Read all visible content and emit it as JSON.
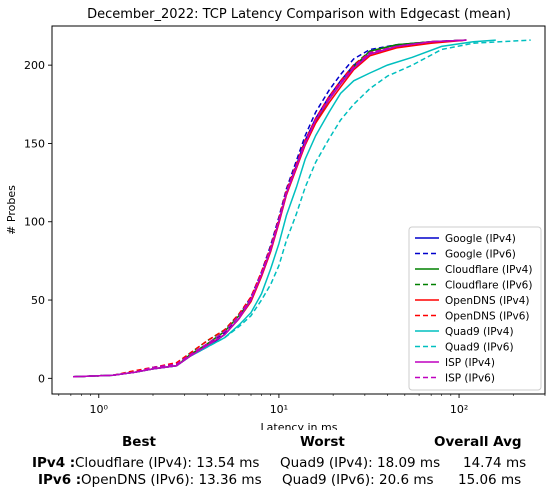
{
  "chart_data": {
    "type": "line",
    "title": "December_2022: TCP Latency Comparison with Edgecast (mean)",
    "xlabel": "Latency in ms",
    "ylabel": "# Probes",
    "xscale": "log",
    "xlim": [
      0.55,
      300
    ],
    "ylim": [
      -10,
      225
    ],
    "xticks": [
      1,
      10,
      100
    ],
    "xtick_labels": [
      "10⁰",
      "10¹",
      "10²"
    ],
    "yticks": [
      0,
      50,
      100,
      150,
      200
    ],
    "grid": false,
    "legend_position": "lower-right",
    "series": [
      {
        "name": "Google (IPv4)",
        "color": "#0000cc",
        "dash": "solid",
        "points": [
          [
            0.72,
            1
          ],
          [
            1.2,
            2
          ],
          [
            1.6,
            4
          ],
          [
            2.0,
            6
          ],
          [
            2.7,
            8
          ],
          [
            3.2,
            14
          ],
          [
            4.0,
            20
          ],
          [
            5.0,
            28
          ],
          [
            6.0,
            38
          ],
          [
            7.0,
            50
          ],
          [
            8.0,
            66
          ],
          [
            9.0,
            82
          ],
          [
            10,
            100
          ],
          [
            11,
            118
          ],
          [
            12.5,
            136
          ],
          [
            14,
            152
          ],
          [
            16,
            166
          ],
          [
            19,
            180
          ],
          [
            22,
            190
          ],
          [
            26,
            200
          ],
          [
            32,
            207
          ],
          [
            45,
            212
          ],
          [
            70,
            215
          ],
          [
            110,
            216
          ]
        ]
      },
      {
        "name": "Google (IPv6)",
        "color": "#0000cc",
        "dash": "dashed",
        "points": [
          [
            0.72,
            1
          ],
          [
            1.2,
            2
          ],
          [
            1.6,
            4
          ],
          [
            2.0,
            7
          ],
          [
            2.7,
            9
          ],
          [
            3.2,
            15
          ],
          [
            4.0,
            22
          ],
          [
            5.0,
            29
          ],
          [
            6.0,
            40
          ],
          [
            7.0,
            52
          ],
          [
            8.0,
            68
          ],
          [
            9.0,
            85
          ],
          [
            10,
            103
          ],
          [
            11,
            121
          ],
          [
            12.5,
            139
          ],
          [
            14,
            155
          ],
          [
            16,
            170
          ],
          [
            19,
            184
          ],
          [
            22,
            194
          ],
          [
            26,
            204
          ],
          [
            32,
            210
          ],
          [
            45,
            213
          ],
          [
            70,
            215
          ],
          [
            110,
            216
          ]
        ]
      },
      {
        "name": "Cloudflare (IPv4)",
        "color": "#008000",
        "dash": "solid",
        "points": [
          [
            0.72,
            1
          ],
          [
            1.2,
            2
          ],
          [
            1.6,
            4
          ],
          [
            2.0,
            6
          ],
          [
            2.7,
            8
          ],
          [
            3.2,
            15
          ],
          [
            4.0,
            22
          ],
          [
            5.0,
            30
          ],
          [
            6.0,
            40
          ],
          [
            7.0,
            50
          ],
          [
            8.0,
            66
          ],
          [
            9.0,
            82
          ],
          [
            10,
            100
          ],
          [
            11,
            118
          ],
          [
            12.5,
            135
          ],
          [
            14,
            150
          ],
          [
            16,
            164
          ],
          [
            19,
            178
          ],
          [
            22,
            188
          ],
          [
            26,
            199
          ],
          [
            32,
            209
          ],
          [
            45,
            213
          ],
          [
            70,
            215
          ],
          [
            110,
            216
          ]
        ]
      },
      {
        "name": "Cloudflare (IPv6)",
        "color": "#008000",
        "dash": "dashed",
        "points": [
          [
            0.72,
            1
          ],
          [
            1.2,
            2
          ],
          [
            1.6,
            4
          ],
          [
            2.0,
            7
          ],
          [
            2.7,
            9
          ],
          [
            3.2,
            16
          ],
          [
            4.0,
            24
          ],
          [
            5.0,
            31
          ],
          [
            6.0,
            41
          ],
          [
            7.0,
            51
          ],
          [
            8.0,
            67
          ],
          [
            9.0,
            83
          ],
          [
            10,
            101
          ],
          [
            11,
            119
          ],
          [
            12.5,
            136
          ],
          [
            14,
            151
          ],
          [
            16,
            165
          ],
          [
            19,
            179
          ],
          [
            22,
            189
          ],
          [
            26,
            200
          ],
          [
            32,
            209
          ],
          [
            45,
            213
          ],
          [
            70,
            215
          ],
          [
            110,
            216
          ]
        ]
      },
      {
        "name": "OpenDNS (IPv4)",
        "color": "#ff0000",
        "dash": "solid",
        "points": [
          [
            0.72,
            1
          ],
          [
            1.2,
            2
          ],
          [
            1.6,
            4
          ],
          [
            2.0,
            6
          ],
          [
            2.7,
            8
          ],
          [
            3.2,
            14
          ],
          [
            4.0,
            21
          ],
          [
            5.0,
            28
          ],
          [
            6.0,
            38
          ],
          [
            7.0,
            49
          ],
          [
            8.0,
            65
          ],
          [
            9.0,
            81
          ],
          [
            10,
            99
          ],
          [
            11,
            117
          ],
          [
            12.5,
            134
          ],
          [
            14,
            149
          ],
          [
            16,
            163
          ],
          [
            19,
            176
          ],
          [
            22,
            186
          ],
          [
            26,
            197
          ],
          [
            32,
            206
          ],
          [
            45,
            211
          ],
          [
            70,
            214
          ],
          [
            110,
            216
          ]
        ]
      },
      {
        "name": "OpenDNS (IPv6)",
        "color": "#ff0000",
        "dash": "dashed",
        "points": [
          [
            0.72,
            1
          ],
          [
            1.2,
            2
          ],
          [
            1.6,
            5
          ],
          [
            2.0,
            7
          ],
          [
            2.7,
            10
          ],
          [
            3.2,
            16
          ],
          [
            4.0,
            24
          ],
          [
            5.0,
            31
          ],
          [
            6.0,
            41
          ],
          [
            7.0,
            52
          ],
          [
            8.0,
            68
          ],
          [
            9.0,
            84
          ],
          [
            10,
            102
          ],
          [
            11,
            120
          ],
          [
            12.5,
            137
          ],
          [
            14,
            152
          ],
          [
            16,
            166
          ],
          [
            19,
            180
          ],
          [
            22,
            190
          ],
          [
            26,
            200
          ],
          [
            32,
            208
          ],
          [
            45,
            212
          ],
          [
            70,
            215
          ],
          [
            110,
            216
          ]
        ]
      },
      {
        "name": "Quad9 (IPv4)",
        "color": "#00bfbf",
        "dash": "solid",
        "points": [
          [
            0.72,
            1
          ],
          [
            1.2,
            2
          ],
          [
            1.6,
            4
          ],
          [
            2.0,
            6
          ],
          [
            2.7,
            8
          ],
          [
            3.2,
            14
          ],
          [
            4.0,
            20
          ],
          [
            5.0,
            26
          ],
          [
            6.0,
            34
          ],
          [
            7.0,
            42
          ],
          [
            8.0,
            54
          ],
          [
            9.0,
            70
          ],
          [
            10,
            86
          ],
          [
            11,
            104
          ],
          [
            12.5,
            122
          ],
          [
            14,
            140
          ],
          [
            16,
            155
          ],
          [
            19,
            170
          ],
          [
            22,
            182
          ],
          [
            26,
            190
          ],
          [
            32,
            195
          ],
          [
            40,
            200
          ],
          [
            55,
            205
          ],
          [
            80,
            212
          ],
          [
            120,
            215
          ],
          [
            160,
            216
          ]
        ]
      },
      {
        "name": "Quad9 (IPv6)",
        "color": "#00bfbf",
        "dash": "dashed",
        "points": [
          [
            0.72,
            1
          ],
          [
            1.2,
            2
          ],
          [
            1.6,
            4
          ],
          [
            2.0,
            6
          ],
          [
            2.7,
            8
          ],
          [
            3.2,
            14
          ],
          [
            4.0,
            20
          ],
          [
            5.0,
            26
          ],
          [
            6.0,
            33
          ],
          [
            7.0,
            40
          ],
          [
            8.0,
            50
          ],
          [
            9.0,
            60
          ],
          [
            10,
            72
          ],
          [
            11,
            88
          ],
          [
            12.5,
            105
          ],
          [
            14,
            122
          ],
          [
            16,
            138
          ],
          [
            19,
            153
          ],
          [
            22,
            165
          ],
          [
            26,
            175
          ],
          [
            32,
            185
          ],
          [
            40,
            193
          ],
          [
            55,
            200
          ],
          [
            80,
            210
          ],
          [
            120,
            214
          ],
          [
            250,
            216
          ]
        ]
      },
      {
        "name": "ISP (IPv4)",
        "color": "#bf00bf",
        "dash": "solid",
        "points": [
          [
            0.72,
            1
          ],
          [
            1.2,
            2
          ],
          [
            1.6,
            4
          ],
          [
            2.0,
            6
          ],
          [
            2.7,
            8
          ],
          [
            3.2,
            14
          ],
          [
            4.0,
            21
          ],
          [
            5.0,
            28
          ],
          [
            6.0,
            38
          ],
          [
            7.0,
            50
          ],
          [
            8.0,
            66
          ],
          [
            9.0,
            82
          ],
          [
            10,
            100
          ],
          [
            11,
            118
          ],
          [
            12.5,
            135
          ],
          [
            14,
            150
          ],
          [
            16,
            165
          ],
          [
            19,
            178
          ],
          [
            22,
            188
          ],
          [
            26,
            198
          ],
          [
            32,
            207
          ],
          [
            45,
            212
          ],
          [
            70,
            215
          ],
          [
            110,
            216
          ]
        ]
      },
      {
        "name": "ISP (IPv6)",
        "color": "#bf00bf",
        "dash": "dashed",
        "points": [
          [
            0.72,
            1
          ],
          [
            1.2,
            2
          ],
          [
            1.6,
            4
          ],
          [
            2.0,
            7
          ],
          [
            2.7,
            9
          ],
          [
            3.2,
            15
          ],
          [
            4.0,
            22
          ],
          [
            5.0,
            30
          ],
          [
            6.0,
            40
          ],
          [
            7.0,
            51
          ],
          [
            8.0,
            67
          ],
          [
            9.0,
            83
          ],
          [
            10,
            101
          ],
          [
            11,
            119
          ],
          [
            12.5,
            136
          ],
          [
            14,
            151
          ],
          [
            16,
            165
          ],
          [
            19,
            179
          ],
          [
            22,
            189
          ],
          [
            26,
            199
          ],
          [
            32,
            208
          ],
          [
            45,
            212
          ],
          [
            70,
            215
          ],
          [
            110,
            216
          ]
        ]
      }
    ]
  },
  "summary": {
    "best_header": "Best",
    "worst_header": "Worst",
    "avg_header": "Overall Avg",
    "ipv4_label": "IPv4 :",
    "ipv6_label": "IPv6 :",
    "ipv4_best": "Cloudflare (IPv4): 13.54 ms",
    "ipv4_worst": "Quad9 (IPv4): 18.09 ms",
    "ipv4_avg": "14.74 ms",
    "ipv6_best": "OpenDNS (IPv6): 13.36 ms",
    "ipv6_worst": "Quad9 (IPv6): 20.6 ms",
    "ipv6_avg": "15.06 ms"
  }
}
